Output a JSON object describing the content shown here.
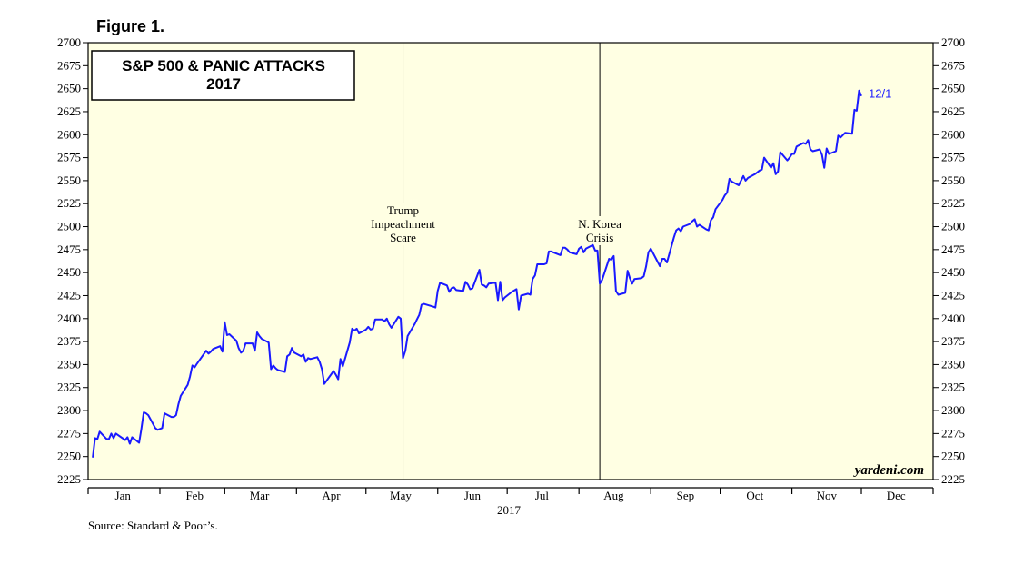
{
  "figure_label": "Figure 1.",
  "source": "Source: Standard & Poor’s.",
  "watermark": "yardeni.com",
  "colors": {
    "plot_background": "#ffffe3",
    "series": "#1a1aff"
  },
  "chart_data": {
    "type": "line",
    "title": "S&P 500 & PANIC ATTACKS",
    "subtitle": "2017",
    "xlabel": "2017",
    "ylabel": "",
    "ylim": [
      2225,
      2700
    ],
    "yticks": [
      2225,
      2250,
      2275,
      2300,
      2325,
      2350,
      2375,
      2400,
      2425,
      2450,
      2475,
      2500,
      2525,
      2550,
      2575,
      2600,
      2625,
      2650,
      2675,
      2700
    ],
    "months": [
      "Jan",
      "Feb",
      "Mar",
      "Apr",
      "May",
      "Jun",
      "Jul",
      "Aug",
      "Sep",
      "Oct",
      "Nov",
      "Dec"
    ],
    "grid": false,
    "end_label": "12/1",
    "annotations": [
      {
        "date": "2017-05-17",
        "lines": [
          "Trump",
          "Impeachment",
          "Scare"
        ]
      },
      {
        "date": "2017-08-10",
        "lines": [
          "N. Korea",
          "Crisis"
        ]
      }
    ],
    "series": [
      {
        "points": [
          [
            "2017-01-03",
            2249
          ],
          [
            "2017-01-04",
            2270
          ],
          [
            "2017-01-05",
            2269
          ],
          [
            "2017-01-06",
            2277
          ],
          [
            "2017-01-09",
            2269
          ],
          [
            "2017-01-10",
            2269
          ],
          [
            "2017-01-11",
            2275
          ],
          [
            "2017-01-12",
            2270
          ],
          [
            "2017-01-13",
            2275
          ],
          [
            "2017-01-17",
            2268
          ],
          [
            "2017-01-18",
            2271
          ],
          [
            "2017-01-19",
            2264
          ],
          [
            "2017-01-20",
            2271
          ],
          [
            "2017-01-23",
            2265
          ],
          [
            "2017-01-24",
            2280
          ],
          [
            "2017-01-25",
            2298
          ],
          [
            "2017-01-26",
            2297
          ],
          [
            "2017-01-27",
            2295
          ],
          [
            "2017-01-30",
            2281
          ],
          [
            "2017-01-31",
            2279
          ],
          [
            "2017-02-01",
            2280
          ],
          [
            "2017-02-02",
            2281
          ],
          [
            "2017-02-03",
            2297
          ],
          [
            "2017-02-06",
            2293
          ],
          [
            "2017-02-07",
            2293
          ],
          [
            "2017-02-08",
            2295
          ],
          [
            "2017-02-09",
            2307
          ],
          [
            "2017-02-10",
            2316
          ],
          [
            "2017-02-13",
            2328
          ],
          [
            "2017-02-14",
            2337
          ],
          [
            "2017-02-15",
            2349
          ],
          [
            "2017-02-16",
            2347
          ],
          [
            "2017-02-17",
            2351
          ],
          [
            "2017-02-21",
            2365
          ],
          [
            "2017-02-22",
            2362
          ],
          [
            "2017-02-23",
            2364
          ],
          [
            "2017-02-24",
            2367
          ],
          [
            "2017-02-27",
            2370
          ],
          [
            "2017-02-28",
            2364
          ],
          [
            "2017-03-01",
            2396
          ],
          [
            "2017-03-02",
            2382
          ],
          [
            "2017-03-03",
            2383
          ],
          [
            "2017-03-06",
            2376
          ],
          [
            "2017-03-07",
            2368
          ],
          [
            "2017-03-08",
            2363
          ],
          [
            "2017-03-09",
            2365
          ],
          [
            "2017-03-10",
            2373
          ],
          [
            "2017-03-13",
            2373
          ],
          [
            "2017-03-14",
            2365
          ],
          [
            "2017-03-15",
            2385
          ],
          [
            "2017-03-16",
            2381
          ],
          [
            "2017-03-17",
            2378
          ],
          [
            "2017-03-20",
            2374
          ],
          [
            "2017-03-21",
            2345
          ],
          [
            "2017-03-22",
            2349
          ],
          [
            "2017-03-23",
            2346
          ],
          [
            "2017-03-24",
            2344
          ],
          [
            "2017-03-27",
            2342
          ],
          [
            "2017-03-28",
            2359
          ],
          [
            "2017-03-29",
            2361
          ],
          [
            "2017-03-30",
            2368
          ],
          [
            "2017-03-31",
            2363
          ],
          [
            "2017-04-03",
            2359
          ],
          [
            "2017-04-04",
            2361
          ],
          [
            "2017-04-05",
            2353
          ],
          [
            "2017-04-06",
            2357
          ],
          [
            "2017-04-07",
            2356
          ],
          [
            "2017-04-10",
            2358
          ],
          [
            "2017-04-11",
            2353
          ],
          [
            "2017-04-12",
            2345
          ],
          [
            "2017-04-13",
            2329
          ],
          [
            "2017-04-17",
            2343
          ],
          [
            "2017-04-18",
            2339
          ],
          [
            "2017-04-19",
            2334
          ],
          [
            "2017-04-20",
            2356
          ],
          [
            "2017-04-21",
            2348
          ],
          [
            "2017-04-24",
            2374
          ],
          [
            "2017-04-25",
            2389
          ],
          [
            "2017-04-26",
            2387
          ],
          [
            "2017-04-27",
            2389
          ],
          [
            "2017-04-28",
            2384
          ],
          [
            "2017-05-01",
            2388
          ],
          [
            "2017-05-02",
            2391
          ],
          [
            "2017-05-03",
            2388
          ],
          [
            "2017-05-04",
            2389
          ],
          [
            "2017-05-05",
            2399
          ],
          [
            "2017-05-08",
            2399
          ],
          [
            "2017-05-09",
            2397
          ],
          [
            "2017-05-10",
            2400
          ],
          [
            "2017-05-11",
            2394
          ],
          [
            "2017-05-12",
            2390
          ],
          [
            "2017-05-15",
            2402
          ],
          [
            "2017-05-16",
            2400
          ],
          [
            "2017-05-17",
            2357
          ],
          [
            "2017-05-18",
            2365
          ],
          [
            "2017-05-19",
            2381
          ],
          [
            "2017-05-22",
            2394
          ],
          [
            "2017-05-23",
            2399
          ],
          [
            "2017-05-24",
            2404
          ],
          [
            "2017-05-25",
            2415
          ],
          [
            "2017-05-26",
            2416
          ],
          [
            "2017-05-30",
            2413
          ],
          [
            "2017-05-31",
            2412
          ],
          [
            "2017-06-01",
            2430
          ],
          [
            "2017-06-02",
            2439
          ],
          [
            "2017-06-05",
            2436
          ],
          [
            "2017-06-06",
            2429
          ],
          [
            "2017-06-07",
            2433
          ],
          [
            "2017-06-08",
            2434
          ],
          [
            "2017-06-09",
            2431
          ],
          [
            "2017-06-12",
            2430
          ],
          [
            "2017-06-13",
            2440
          ],
          [
            "2017-06-14",
            2437
          ],
          [
            "2017-06-15",
            2432
          ],
          [
            "2017-06-16",
            2433
          ],
          [
            "2017-06-19",
            2453
          ],
          [
            "2017-06-20",
            2437
          ],
          [
            "2017-06-21",
            2436
          ],
          [
            "2017-06-22",
            2434
          ],
          [
            "2017-06-23",
            2438
          ],
          [
            "2017-06-26",
            2439
          ],
          [
            "2017-06-27",
            2420
          ],
          [
            "2017-06-28",
            2440
          ],
          [
            "2017-06-29",
            2420
          ],
          [
            "2017-06-30",
            2423
          ],
          [
            "2017-07-03",
            2429
          ],
          [
            "2017-07-05",
            2432
          ],
          [
            "2017-07-06",
            2410
          ],
          [
            "2017-07-07",
            2425
          ],
          [
            "2017-07-10",
            2427
          ],
          [
            "2017-07-11",
            2426
          ],
          [
            "2017-07-12",
            2443
          ],
          [
            "2017-07-13",
            2447
          ],
          [
            "2017-07-14",
            2459
          ],
          [
            "2017-07-17",
            2459
          ],
          [
            "2017-07-18",
            2460
          ],
          [
            "2017-07-19",
            2473
          ],
          [
            "2017-07-20",
            2473
          ],
          [
            "2017-07-21",
            2472
          ],
          [
            "2017-07-24",
            2469
          ],
          [
            "2017-07-25",
            2477
          ],
          [
            "2017-07-26",
            2477
          ],
          [
            "2017-07-27",
            2475
          ],
          [
            "2017-07-28",
            2472
          ],
          [
            "2017-07-31",
            2470
          ],
          [
            "2017-08-01",
            2476
          ],
          [
            "2017-08-02",
            2478
          ],
          [
            "2017-08-03",
            2472
          ],
          [
            "2017-08-04",
            2476
          ],
          [
            "2017-08-07",
            2480
          ],
          [
            "2017-08-08",
            2474
          ],
          [
            "2017-08-09",
            2474
          ],
          [
            "2017-08-10",
            2438
          ],
          [
            "2017-08-11",
            2442
          ],
          [
            "2017-08-14",
            2465
          ],
          [
            "2017-08-15",
            2464
          ],
          [
            "2017-08-16",
            2468
          ],
          [
            "2017-08-17",
            2430
          ],
          [
            "2017-08-18",
            2426
          ],
          [
            "2017-08-21",
            2428
          ],
          [
            "2017-08-22",
            2452
          ],
          [
            "2017-08-23",
            2444
          ],
          [
            "2017-08-24",
            2438
          ],
          [
            "2017-08-25",
            2443
          ],
          [
            "2017-08-28",
            2444
          ],
          [
            "2017-08-29",
            2446
          ],
          [
            "2017-08-30",
            2457
          ],
          [
            "2017-08-31",
            2472
          ],
          [
            "2017-09-01",
            2476
          ],
          [
            "2017-09-05",
            2457
          ],
          [
            "2017-09-06",
            2465
          ],
          [
            "2017-09-07",
            2465
          ],
          [
            "2017-09-08",
            2461
          ],
          [
            "2017-09-11",
            2488
          ],
          [
            "2017-09-12",
            2496
          ],
          [
            "2017-09-13",
            2498
          ],
          [
            "2017-09-14",
            2495
          ],
          [
            "2017-09-15",
            2500
          ],
          [
            "2017-09-18",
            2503
          ],
          [
            "2017-09-19",
            2506
          ],
          [
            "2017-09-20",
            2508
          ],
          [
            "2017-09-21",
            2500
          ],
          [
            "2017-09-22",
            2502
          ],
          [
            "2017-09-25",
            2497
          ],
          [
            "2017-09-26",
            2496
          ],
          [
            "2017-09-27",
            2507
          ],
          [
            "2017-09-28",
            2510
          ],
          [
            "2017-09-29",
            2519
          ],
          [
            "2017-10-02",
            2529
          ],
          [
            "2017-10-03",
            2534
          ],
          [
            "2017-10-04",
            2537
          ],
          [
            "2017-10-05",
            2552
          ],
          [
            "2017-10-06",
            2549
          ],
          [
            "2017-10-09",
            2545
          ],
          [
            "2017-10-10",
            2550
          ],
          [
            "2017-10-11",
            2555
          ],
          [
            "2017-10-12",
            2550
          ],
          [
            "2017-10-13",
            2553
          ],
          [
            "2017-10-16",
            2557
          ],
          [
            "2017-10-17",
            2559
          ],
          [
            "2017-10-18",
            2561
          ],
          [
            "2017-10-19",
            2562
          ],
          [
            "2017-10-20",
            2575
          ],
          [
            "2017-10-23",
            2564
          ],
          [
            "2017-10-24",
            2569
          ],
          [
            "2017-10-25",
            2557
          ],
          [
            "2017-10-26",
            2560
          ],
          [
            "2017-10-27",
            2581
          ],
          [
            "2017-10-30",
            2572
          ],
          [
            "2017-10-31",
            2575
          ],
          [
            "2017-11-01",
            2579
          ],
          [
            "2017-11-02",
            2579
          ],
          [
            "2017-11-03",
            2587
          ],
          [
            "2017-11-06",
            2591
          ],
          [
            "2017-11-07",
            2590
          ],
          [
            "2017-11-08",
            2594
          ],
          [
            "2017-11-09",
            2584
          ],
          [
            "2017-11-10",
            2582
          ],
          [
            "2017-11-13",
            2584
          ],
          [
            "2017-11-14",
            2578
          ],
          [
            "2017-11-15",
            2564
          ],
          [
            "2017-11-16",
            2585
          ],
          [
            "2017-11-17",
            2579
          ],
          [
            "2017-11-20",
            2582
          ],
          [
            "2017-11-21",
            2599
          ],
          [
            "2017-11-22",
            2597
          ],
          [
            "2017-11-24",
            2602
          ],
          [
            "2017-11-27",
            2601
          ],
          [
            "2017-11-28",
            2627
          ],
          [
            "2017-11-29",
            2626
          ],
          [
            "2017-11-30",
            2648
          ],
          [
            "2017-12-01",
            2642
          ]
        ]
      }
    ]
  }
}
